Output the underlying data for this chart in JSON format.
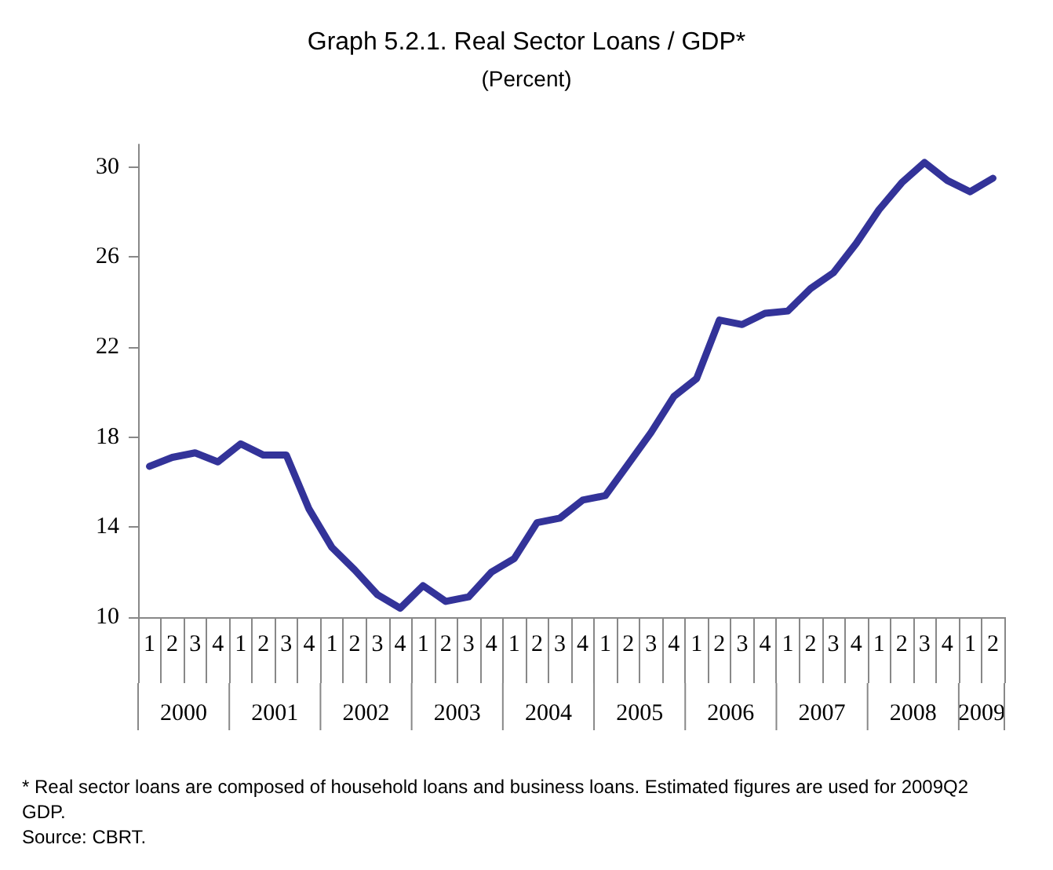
{
  "chart_data": {
    "type": "line",
    "title": "Graph 5.2.1. Real Sector Loans / GDP*",
    "subtitle": "(Percent)",
    "categories": [
      "1",
      "2",
      "3",
      "4",
      "1",
      "2",
      "3",
      "4",
      "1",
      "2",
      "3",
      "4",
      "1",
      "2",
      "3",
      "4",
      "1",
      "2",
      "3",
      "4",
      "1",
      "2",
      "3",
      "4",
      "1",
      "2",
      "3",
      "4",
      "1",
      "2",
      "3",
      "4",
      "1",
      "2",
      "3",
      "4",
      "1",
      "2"
    ],
    "series": [
      {
        "color": "#333399",
        "values": [
          16.7,
          17.1,
          17.3,
          16.9,
          17.7,
          17.2,
          17.2,
          14.8,
          13.1,
          12.1,
          11.0,
          10.4,
          11.4,
          10.7,
          10.9,
          12.0,
          12.6,
          14.2,
          14.4,
          15.2,
          15.4,
          16.8,
          18.2,
          19.8,
          20.6,
          23.2,
          23.0,
          23.5,
          23.6,
          24.6,
          25.3,
          26.6,
          28.1,
          29.3,
          30.2,
          29.4,
          28.9,
          29.5
        ]
      }
    ],
    "ylim": [
      10,
      31
    ],
    "yticks": [
      10,
      14,
      18,
      22,
      26,
      30
    ],
    "grid": false,
    "marker": "none",
    "line_style": "solid",
    "annotations": [
      "2000",
      "2001",
      "2002",
      "2003",
      "2004",
      "2005",
      "2006",
      "2007",
      "2008",
      "2009",
      "* Real sector loans are composed of household loans and business loans. Estimated figures are used for 2009Q2 GDP.",
      "Source: CBRT."
    ]
  }
}
